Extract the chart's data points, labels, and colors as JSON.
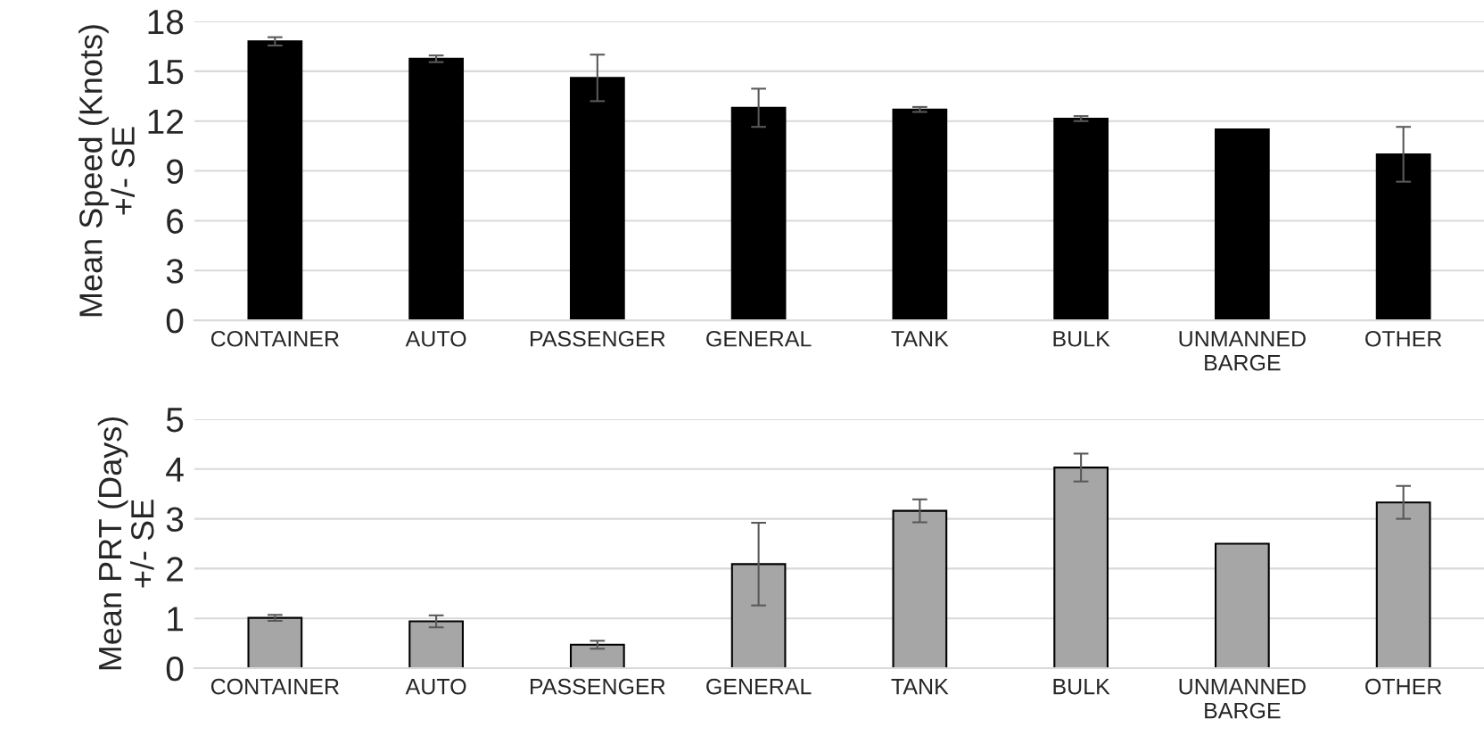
{
  "chart_data": [
    {
      "type": "bar",
      "ylabel": "Mean Speed (Knots)\n+/- SE",
      "categories": [
        "CONTAINER",
        "AUTO",
        "PASSENGER",
        "GENERAL",
        "TANK",
        "BULK",
        "UNMANNED\nBARGE",
        "OTHER"
      ],
      "values": [
        16.8,
        15.75,
        14.6,
        12.8,
        12.7,
        12.15,
        11.5,
        10.0
      ],
      "errors": [
        0.25,
        0.2,
        1.4,
        1.15,
        0.15,
        0.15,
        null,
        1.65
      ],
      "color": "#000000",
      "ylim": [
        0,
        18
      ],
      "yticks": [
        0,
        3,
        6,
        9,
        12,
        15,
        18
      ],
      "grid": "y"
    },
    {
      "type": "bar",
      "ylabel": "Mean PRT (Days)\n+/- SE",
      "categories": [
        "CONTAINER",
        "AUTO",
        "PASSENGER",
        "GENERAL",
        "TANK",
        "BULK",
        "UNMANNED\nBARGE",
        "OTHER"
      ],
      "values": [
        1.01,
        0.94,
        0.47,
        2.09,
        3.16,
        4.03,
        2.5,
        3.33
      ],
      "errors": [
        0.06,
        0.12,
        0.08,
        0.83,
        0.23,
        0.28,
        null,
        0.33
      ],
      "color": "#a6a6a6",
      "ylim": [
        0,
        5
      ],
      "yticks": [
        0,
        1,
        2,
        3,
        4,
        5
      ],
      "grid": "y"
    }
  ]
}
